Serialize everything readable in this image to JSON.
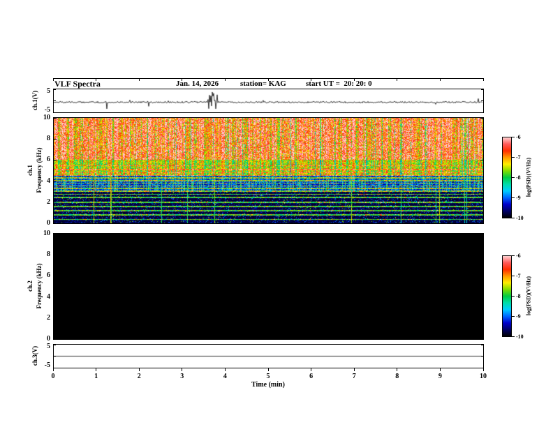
{
  "header": {
    "title": "VLF Spectra",
    "date": "Jan. 14, 2026",
    "station": "station= KAG",
    "start_ut": "start UT =  20: 20: 0"
  },
  "axes": {
    "time_label": "Time (min)",
    "time_ticks": [
      "0",
      "1",
      "2",
      "3",
      "4",
      "5",
      "6",
      "7",
      "8",
      "9",
      "10"
    ],
    "freq_ticks": [
      "10",
      "8",
      "6",
      "4",
      "2",
      "0"
    ],
    "volt_ticks": [
      "5",
      "-5"
    ]
  },
  "panels": {
    "ch1_wave": {
      "label": "ch.1(V)"
    },
    "ch1_spec": {
      "ch_label": "ch.1",
      "freq_label": "Frequency (kHz)"
    },
    "ch2_spec": {
      "ch_label": "ch.2",
      "freq_label": "Frequency (kHz)"
    },
    "ch3_wave": {
      "label": "ch.3(V)"
    }
  },
  "colorbar": {
    "label": "log(PSD)(V²/Hz)",
    "ticks": [
      "-6",
      "-7",
      "-8",
      "-9",
      "-10"
    ],
    "gradient": [
      "#ffd2d2",
      "#ff5a5a",
      "#ff2d00",
      "#ff9900",
      "#ffee00",
      "#7fdd00",
      "#00cc44",
      "#00ddaa",
      "#00ccff",
      "#0066ff",
      "#0000cc",
      "#000066",
      "#000000"
    ]
  },
  "chart_data": [
    {
      "type": "line",
      "panel": "ch1-waveform",
      "x_range_min": [
        0,
        10
      ],
      "y_range_V": [
        -5,
        5
      ],
      "baseline_V": -0.6,
      "noise_V": 0.35,
      "spike_cluster_min": 3.7,
      "spike_rate": 0.012,
      "spike_max_V": 4,
      "description": "continuous noisy trace with intermittent impulsive spikes to about +/-4 V; densest spike cluster near 3.7 min"
    },
    {
      "type": "heatmap",
      "panel": "ch1-spectrogram",
      "x_range_min": [
        0,
        10
      ],
      "y_range_kHz": [
        0,
        10
      ],
      "z_range_logPSD": [
        -10,
        -6
      ],
      "bands": [
        {
          "f_kHz": [
            6,
            10
          ],
          "mean_level": -6.8,
          "texture": "dense red/orange vertical bursts with green gaps"
        },
        {
          "f_kHz": [
            4.5,
            6
          ],
          "mean_level": -7.6,
          "texture": "yellow-green mottled band with faint horizontal lines"
        },
        {
          "f_kHz": [
            3,
            4.5
          ],
          "mean_level": -8.6,
          "texture": "blue-green band with persistent horizontal interference lines"
        },
        {
          "f_kHz": [
            0,
            3
          ],
          "mean_level": -9.6,
          "texture": "near-black background with blue speckle and narrow cyan horizontal lines"
        }
      ],
      "horizontal_lines_kHz": [
        0.35,
        0.8,
        1.2,
        1.6,
        2.0,
        2.45,
        2.75,
        3.05,
        3.3,
        3.55,
        3.8,
        4.05,
        4.3,
        4.55,
        4.8,
        5.1,
        5.45
      ],
      "vertical_streaks": "about a dozen full-height bright impulsive streaks, e.g. near 3.1 and 7.6 min"
    },
    {
      "type": "heatmap",
      "panel": "ch2-spectrogram",
      "x_range_min": [
        0,
        10
      ],
      "y_range_kHz": [
        0,
        10
      ],
      "z_range_logPSD": [
        -10,
        -6
      ],
      "uniform_level": -10,
      "description": "entirely black - no signal on ch.2"
    },
    {
      "type": "line",
      "panel": "ch3-waveform",
      "x_range_min": [
        0,
        10
      ],
      "y_range_V": [
        -5,
        5
      ],
      "baseline_V": 0,
      "noise_V": 0,
      "description": "flat line at 0 V"
    }
  ]
}
